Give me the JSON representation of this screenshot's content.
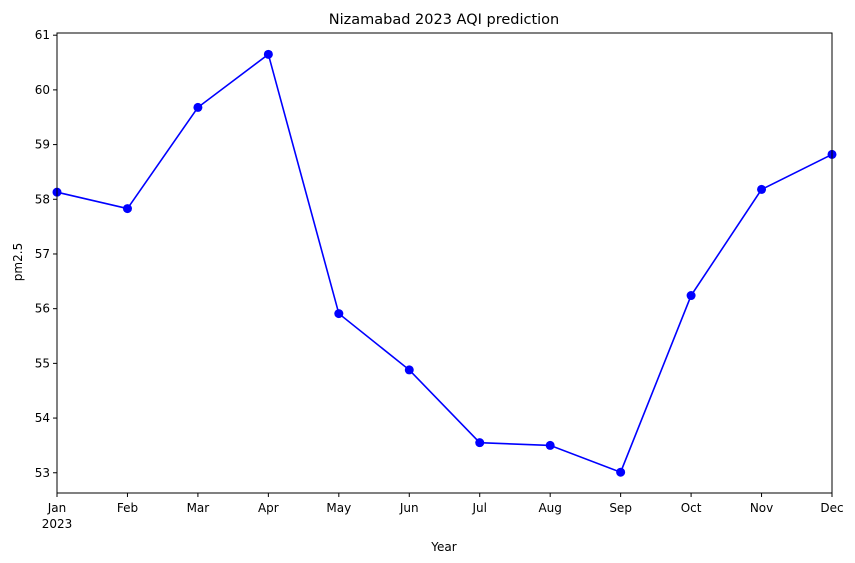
{
  "chart_data": {
    "type": "line",
    "title": "Nizamabad 2023 AQI prediction",
    "xlabel": "Year",
    "ylabel": "pm2.5",
    "year_label": "2023",
    "categories": [
      "Jan",
      "Feb",
      "Mar",
      "Apr",
      "May",
      "Jun",
      "Jul",
      "Aug",
      "Sep",
      "Oct",
      "Nov",
      "Dec"
    ],
    "values": [
      58.13,
      57.83,
      59.68,
      60.65,
      55.91,
      54.88,
      53.55,
      53.5,
      53.01,
      56.24,
      58.18,
      58.82
    ],
    "ylim": [
      52.63,
      61.04
    ],
    "yticks": [
      53,
      54,
      55,
      56,
      57,
      58,
      59,
      60,
      61
    ],
    "grid": false,
    "line_color": "#0000ff",
    "marker": "circle"
  }
}
